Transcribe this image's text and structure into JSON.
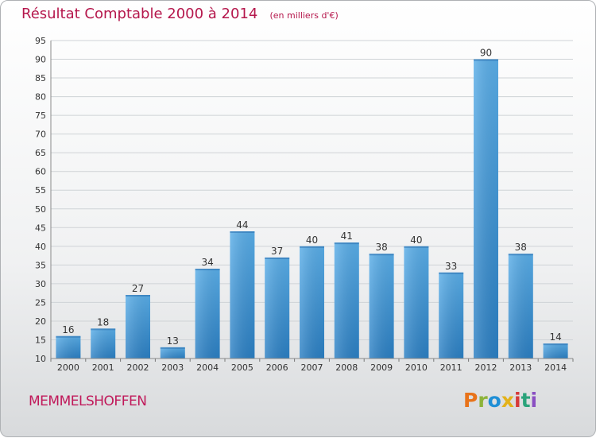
{
  "header": {
    "title": "Résultat Comptable 2000 à 2014",
    "subtitle": "(en milliers d'€)"
  },
  "footer": {
    "commune": "MEMMELSHOFFEN",
    "brand": "Proxiti",
    "brand_colors": [
      "#e8731a",
      "#8db33a",
      "#1f8fd6",
      "#e3b21a",
      "#d63a3a",
      "#2aa37b",
      "#8a4fc2"
    ]
  },
  "colors": {
    "bar": "#3f95d8",
    "bar_dark": "#2a7cc0",
    "grid": "#cfd3d6",
    "axis_text": "#333333",
    "title": "#b5174c"
  },
  "chart_data": {
    "type": "bar",
    "categories": [
      "2000",
      "2001",
      "2002",
      "2003",
      "2004",
      "2005",
      "2006",
      "2007",
      "2008",
      "2009",
      "2010",
      "2011",
      "2012",
      "2013",
      "2014"
    ],
    "values": [
      16,
      18,
      27,
      13,
      34,
      44,
      37,
      40,
      41,
      38,
      40,
      33,
      90,
      38,
      14
    ],
    "ylim": [
      10,
      95
    ],
    "yticks": [
      10,
      15,
      20,
      25,
      30,
      35,
      40,
      45,
      50,
      55,
      60,
      65,
      70,
      75,
      80,
      85,
      90,
      95
    ],
    "grid": true,
    "data_labels": true
  }
}
